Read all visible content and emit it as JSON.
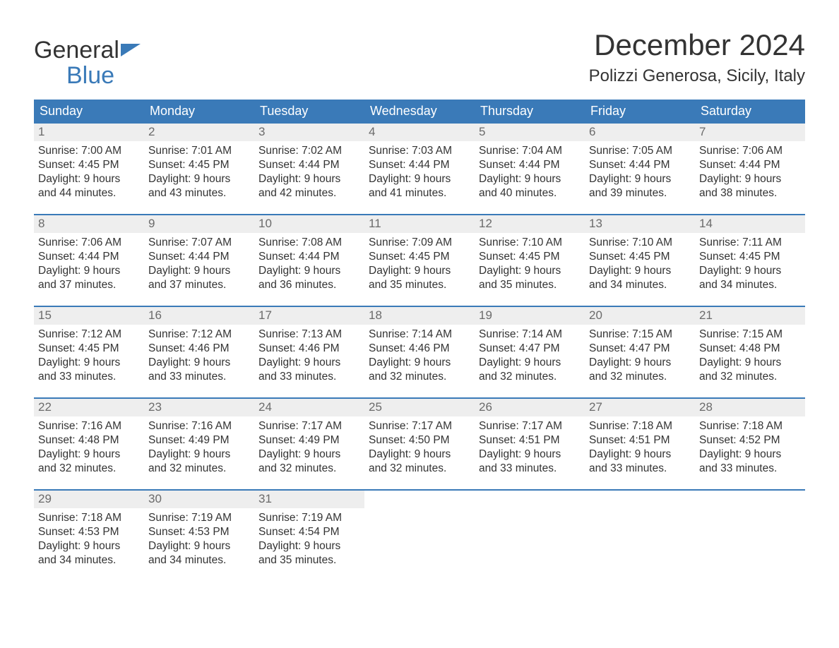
{
  "brand": {
    "line1": "General",
    "line2": "Blue"
  },
  "title": "December 2024",
  "location": "Polizzi Generosa, Sicily, Italy",
  "colors": {
    "header_bg": "#3a7ab8",
    "header_text": "#ffffff",
    "daynum_bg": "#eeeeee",
    "daynum_text": "#6b6b6b",
    "body_text": "#333333",
    "week_border": "#3a7ab8",
    "page_bg": "#ffffff",
    "logo_accent": "#3a7ab8"
  },
  "weekdays": [
    "Sunday",
    "Monday",
    "Tuesday",
    "Wednesday",
    "Thursday",
    "Friday",
    "Saturday"
  ],
  "labels": {
    "sunrise": "Sunrise:",
    "sunset": "Sunset:",
    "daylight_prefix": "Daylight:"
  },
  "weeks": [
    [
      {
        "num": "1",
        "sunrise": "7:00 AM",
        "sunset": "4:45 PM",
        "daylight": "9 hours and 44 minutes."
      },
      {
        "num": "2",
        "sunrise": "7:01 AM",
        "sunset": "4:45 PM",
        "daylight": "9 hours and 43 minutes."
      },
      {
        "num": "3",
        "sunrise": "7:02 AM",
        "sunset": "4:44 PM",
        "daylight": "9 hours and 42 minutes."
      },
      {
        "num": "4",
        "sunrise": "7:03 AM",
        "sunset": "4:44 PM",
        "daylight": "9 hours and 41 minutes."
      },
      {
        "num": "5",
        "sunrise": "7:04 AM",
        "sunset": "4:44 PM",
        "daylight": "9 hours and 40 minutes."
      },
      {
        "num": "6",
        "sunrise": "7:05 AM",
        "sunset": "4:44 PM",
        "daylight": "9 hours and 39 minutes."
      },
      {
        "num": "7",
        "sunrise": "7:06 AM",
        "sunset": "4:44 PM",
        "daylight": "9 hours and 38 minutes."
      }
    ],
    [
      {
        "num": "8",
        "sunrise": "7:06 AM",
        "sunset": "4:44 PM",
        "daylight": "9 hours and 37 minutes."
      },
      {
        "num": "9",
        "sunrise": "7:07 AM",
        "sunset": "4:44 PM",
        "daylight": "9 hours and 37 minutes."
      },
      {
        "num": "10",
        "sunrise": "7:08 AM",
        "sunset": "4:44 PM",
        "daylight": "9 hours and 36 minutes."
      },
      {
        "num": "11",
        "sunrise": "7:09 AM",
        "sunset": "4:45 PM",
        "daylight": "9 hours and 35 minutes."
      },
      {
        "num": "12",
        "sunrise": "7:10 AM",
        "sunset": "4:45 PM",
        "daylight": "9 hours and 35 minutes."
      },
      {
        "num": "13",
        "sunrise": "7:10 AM",
        "sunset": "4:45 PM",
        "daylight": "9 hours and 34 minutes."
      },
      {
        "num": "14",
        "sunrise": "7:11 AM",
        "sunset": "4:45 PM",
        "daylight": "9 hours and 34 minutes."
      }
    ],
    [
      {
        "num": "15",
        "sunrise": "7:12 AM",
        "sunset": "4:45 PM",
        "daylight": "9 hours and 33 minutes."
      },
      {
        "num": "16",
        "sunrise": "7:12 AM",
        "sunset": "4:46 PM",
        "daylight": "9 hours and 33 minutes."
      },
      {
        "num": "17",
        "sunrise": "7:13 AM",
        "sunset": "4:46 PM",
        "daylight": "9 hours and 33 minutes."
      },
      {
        "num": "18",
        "sunrise": "7:14 AM",
        "sunset": "4:46 PM",
        "daylight": "9 hours and 32 minutes."
      },
      {
        "num": "19",
        "sunrise": "7:14 AM",
        "sunset": "4:47 PM",
        "daylight": "9 hours and 32 minutes."
      },
      {
        "num": "20",
        "sunrise": "7:15 AM",
        "sunset": "4:47 PM",
        "daylight": "9 hours and 32 minutes."
      },
      {
        "num": "21",
        "sunrise": "7:15 AM",
        "sunset": "4:48 PM",
        "daylight": "9 hours and 32 minutes."
      }
    ],
    [
      {
        "num": "22",
        "sunrise": "7:16 AM",
        "sunset": "4:48 PM",
        "daylight": "9 hours and 32 minutes."
      },
      {
        "num": "23",
        "sunrise": "7:16 AM",
        "sunset": "4:49 PM",
        "daylight": "9 hours and 32 minutes."
      },
      {
        "num": "24",
        "sunrise": "7:17 AM",
        "sunset": "4:49 PM",
        "daylight": "9 hours and 32 minutes."
      },
      {
        "num": "25",
        "sunrise": "7:17 AM",
        "sunset": "4:50 PM",
        "daylight": "9 hours and 32 minutes."
      },
      {
        "num": "26",
        "sunrise": "7:17 AM",
        "sunset": "4:51 PM",
        "daylight": "9 hours and 33 minutes."
      },
      {
        "num": "27",
        "sunrise": "7:18 AM",
        "sunset": "4:51 PM",
        "daylight": "9 hours and 33 minutes."
      },
      {
        "num": "28",
        "sunrise": "7:18 AM",
        "sunset": "4:52 PM",
        "daylight": "9 hours and 33 minutes."
      }
    ],
    [
      {
        "num": "29",
        "sunrise": "7:18 AM",
        "sunset": "4:53 PM",
        "daylight": "9 hours and 34 minutes."
      },
      {
        "num": "30",
        "sunrise": "7:19 AM",
        "sunset": "4:53 PM",
        "daylight": "9 hours and 34 minutes."
      },
      {
        "num": "31",
        "sunrise": "7:19 AM",
        "sunset": "4:54 PM",
        "daylight": "9 hours and 35 minutes."
      },
      {
        "empty": true
      },
      {
        "empty": true
      },
      {
        "empty": true
      },
      {
        "empty": true
      }
    ]
  ]
}
